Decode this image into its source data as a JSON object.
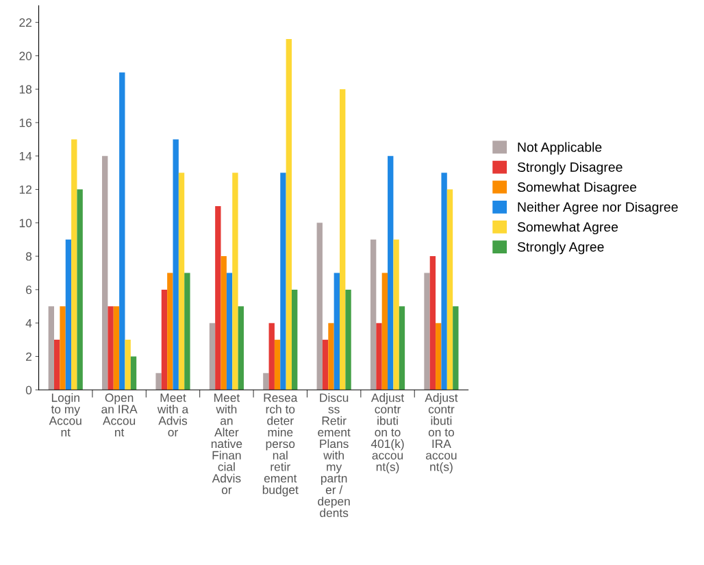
{
  "chart_data": {
    "type": "bar",
    "categories": [
      "Login to my Account",
      "Open an IRA Account",
      "Meet with a Advisor",
      "Meet with an Alternative Financial Advisor",
      "Research to determine personal retirement budget",
      "Discuss Retirement Plans with my partner / dependents",
      "Adjust contribution to 401(k) account(s)",
      "Adjust contribution to IRA account(s)"
    ],
    "series": [
      {
        "name": "Not Applicable",
        "color": "#b3a6a6",
        "values": [
          5,
          14,
          1,
          4,
          1,
          10,
          9,
          7
        ]
      },
      {
        "name": "Strongly Disagree",
        "color": "#e53935",
        "values": [
          3,
          5,
          6,
          11,
          4,
          3,
          4,
          8
        ]
      },
      {
        "name": "Somewhat Disagree",
        "color": "#fb8c00",
        "values": [
          5,
          5,
          7,
          8,
          3,
          4,
          7,
          4
        ]
      },
      {
        "name": "Neither Agree nor Disagree",
        "color": "#1e88e5",
        "values": [
          9,
          19,
          15,
          7,
          13,
          7,
          14,
          13
        ]
      },
      {
        "name": "Somewhat Agree",
        "color": "#fdd835",
        "values": [
          15,
          3,
          13,
          13,
          21,
          18,
          9,
          12
        ]
      },
      {
        "name": "Strongly Agree",
        "color": "#43a047",
        "values": [
          12,
          2,
          7,
          5,
          6,
          6,
          5,
          5
        ]
      }
    ],
    "ylim": [
      0,
      23
    ],
    "yticks": [
      0,
      2,
      4,
      6,
      8,
      10,
      12,
      14,
      16,
      18,
      20,
      22
    ],
    "grid": false,
    "legend": "right"
  }
}
